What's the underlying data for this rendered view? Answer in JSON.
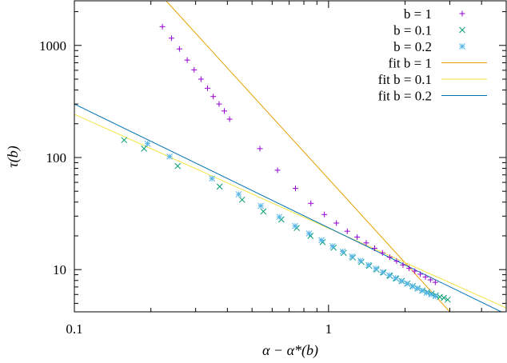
{
  "chart_data": {
    "type": "scatter",
    "x_scale": "log",
    "y_scale": "log",
    "xlabel": "α − α*(b)",
    "ylabel": "τ(b)",
    "xlim": [
      0.1,
      5.0
    ],
    "ylim": [
      4.2,
      2500
    ],
    "x_ticks": [
      {
        "value": 0.1,
        "label": "0.1"
      },
      {
        "value": 1,
        "label": "1"
      }
    ],
    "y_ticks": [
      {
        "value": 10,
        "label": "10"
      },
      {
        "value": 100,
        "label": "100"
      },
      {
        "value": 1000,
        "label": "1000"
      }
    ],
    "legend_position": "top-right",
    "series": [
      {
        "name": "b = 1",
        "marker": "+",
        "color": "#9400d3",
        "x": [
          0.222,
          0.241,
          0.259,
          0.278,
          0.296,
          0.315,
          0.334,
          0.352,
          0.371,
          0.389,
          0.408,
          0.537,
          0.63,
          0.741,
          0.852,
          0.963,
          1.074,
          1.185,
          1.296,
          1.407,
          1.518,
          1.63,
          1.741,
          1.852,
          1.963,
          2.074,
          2.185,
          2.296,
          2.407,
          2.518,
          2.63
        ],
        "y": [
          1470,
          1160,
          930,
          740,
          605,
          500,
          415,
          350,
          300,
          260,
          220,
          120,
          77,
          53,
          39,
          31,
          26,
          22,
          19.5,
          17.3,
          15.5,
          14.1,
          12.9,
          11.9,
          11.0,
          10.3,
          9.7,
          9.1,
          8.6,
          8.1,
          7.7
        ]
      },
      {
        "name": "b = 0.1",
        "marker": "x",
        "color": "#009e73",
        "x": [
          0.157,
          0.188,
          0.255,
          0.373,
          0.457,
          0.554,
          0.652,
          0.75,
          0.849,
          0.948,
          1.047,
          1.147,
          1.246,
          1.346,
          1.445,
          1.545,
          1.644,
          1.744,
          1.844,
          1.944,
          2.044,
          2.144,
          2.244,
          2.343,
          2.443,
          2.543,
          2.643,
          2.743,
          2.843,
          2.943
        ],
        "y": [
          143,
          120,
          84,
          55,
          42,
          33,
          28,
          23.5,
          20.0,
          17.6,
          15.7,
          14.1,
          12.8,
          11.7,
          10.8,
          10.0,
          9.4,
          8.8,
          8.3,
          7.9,
          7.5,
          7.1,
          6.8,
          6.5,
          6.3,
          6.1,
          5.9,
          5.7,
          5.6,
          5.4
        ]
      },
      {
        "name": "b = 0.2",
        "marker": "*",
        "color": "#56b4e9",
        "x": [
          0.194,
          0.237,
          0.348,
          0.443,
          0.541,
          0.64,
          0.739,
          0.838,
          0.938,
          1.037,
          1.137,
          1.236,
          1.336,
          1.436,
          1.536,
          1.635,
          1.735,
          1.835,
          1.935,
          2.035,
          2.135,
          2.235,
          2.335,
          2.435,
          2.535,
          2.635
        ],
        "y": [
          133,
          102,
          65,
          47,
          37,
          29.5,
          24.5,
          21.0,
          18.3,
          16.2,
          14.5,
          13.1,
          12.0,
          11.0,
          10.2,
          9.5,
          8.9,
          8.4,
          7.9,
          7.5,
          7.1,
          6.8,
          6.5,
          6.2,
          6.0,
          5.8
        ]
      }
    ],
    "fits": [
      {
        "name": "fit b = 1",
        "color": "#e69f00",
        "x": [
          0.1,
          5.0
        ],
        "y": [
          19700,
          1.18
        ]
      },
      {
        "name": "fit b = 0.1",
        "color": "#f0e442",
        "x": [
          0.1,
          5.0
        ],
        "y": [
          243,
          4.55
        ]
      },
      {
        "name": "fit b = 0.2",
        "color": "#0072b2",
        "x": [
          0.1,
          5.0
        ],
        "y": [
          300,
          4.0
        ]
      }
    ]
  }
}
